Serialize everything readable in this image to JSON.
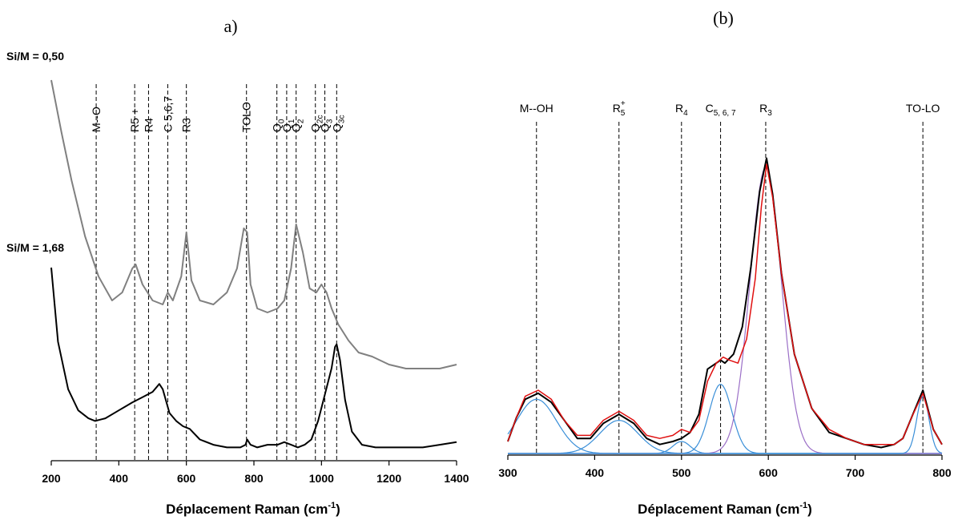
{
  "chart_data": [
    {
      "panel": "a",
      "type": "line",
      "title": "a)",
      "xlabel": "Déplacement Raman (cm",
      "xlabel_sup": "-1",
      "xlabel_close": ")",
      "xlim": [
        200,
        1400
      ],
      "xticks": [
        200,
        400,
        600,
        800,
        1000,
        1200,
        1400
      ],
      "y_axis_visible": false,
      "series_labels": [
        "Si/M = 0,50",
        "Si/M = 1,68"
      ],
      "colors": [
        "#808080",
        "#000000"
      ],
      "series": [
        {
          "name": "Si/M = 0,50",
          "color": "#808080",
          "x": [
            200,
            230,
            260,
            300,
            340,
            380,
            410,
            440,
            450,
            470,
            500,
            530,
            545,
            560,
            585,
            600,
            615,
            640,
            680,
            720,
            750,
            770,
            780,
            790,
            810,
            840,
            870,
            890,
            910,
            925,
            945,
            965,
            985,
            1000,
            1015,
            1030,
            1050,
            1080,
            1110,
            1150,
            1200,
            1250,
            1300,
            1350,
            1400
          ],
          "y": [
            0.95,
            0.82,
            0.7,
            0.56,
            0.46,
            0.4,
            0.42,
            0.48,
            0.49,
            0.44,
            0.4,
            0.39,
            0.42,
            0.4,
            0.46,
            0.57,
            0.45,
            0.4,
            0.39,
            0.42,
            0.48,
            0.58,
            0.57,
            0.44,
            0.38,
            0.37,
            0.38,
            0.4,
            0.48,
            0.59,
            0.52,
            0.43,
            0.42,
            0.44,
            0.42,
            0.38,
            0.34,
            0.3,
            0.27,
            0.26,
            0.24,
            0.23,
            0.23,
            0.23,
            0.24
          ]
        },
        {
          "name": "Si/M = 1,68",
          "color": "#000000",
          "x": [
            200,
            220,
            250,
            280,
            310,
            330,
            360,
            400,
            440,
            470,
            500,
            520,
            530,
            550,
            570,
            590,
            610,
            640,
            680,
            720,
            760,
            775,
            780,
            790,
            810,
            840,
            870,
            890,
            910,
            930,
            950,
            970,
            990,
            1010,
            1030,
            1040,
            1045,
            1055,
            1070,
            1090,
            1120,
            1160,
            1200,
            1250,
            1300,
            1350,
            1400
          ],
          "y": [
            0.7,
            0.42,
            0.24,
            0.16,
            0.13,
            0.12,
            0.13,
            0.16,
            0.19,
            0.21,
            0.23,
            0.26,
            0.24,
            0.15,
            0.12,
            0.1,
            0.09,
            0.05,
            0.03,
            0.02,
            0.02,
            0.03,
            0.05,
            0.03,
            0.02,
            0.03,
            0.03,
            0.04,
            0.03,
            0.02,
            0.03,
            0.05,
            0.12,
            0.22,
            0.32,
            0.4,
            0.41,
            0.35,
            0.2,
            0.08,
            0.03,
            0.02,
            0.02,
            0.02,
            0.02,
            0.03,
            0.04
          ]
        }
      ],
      "markers": [
        {
          "x": 333,
          "label": "M--O",
          "sub": ""
        },
        {
          "x": 447,
          "label": "R5 +",
          "sub": ""
        },
        {
          "x": 488,
          "label": "R4",
          "sub": ""
        },
        {
          "x": 545,
          "label": "C 5,6,7",
          "sub": ""
        },
        {
          "x": 600,
          "label": "R3",
          "sub": ""
        },
        {
          "x": 778,
          "label": "TOLO",
          "sub": ""
        },
        {
          "x": 868,
          "label": "Q",
          "sub": "0"
        },
        {
          "x": 897,
          "label": "Q",
          "sub": "1"
        },
        {
          "x": 925,
          "label": "Q",
          "sub": "2"
        },
        {
          "x": 982,
          "label": "Q",
          "sub": "2c"
        },
        {
          "x": 1010,
          "label": "Q",
          "sub": "3"
        },
        {
          "x": 1045,
          "label": "Q",
          "sub": "3c"
        }
      ]
    },
    {
      "panel": "b",
      "type": "line",
      "title": "(b)",
      "xlabel": "Déplacement Raman (cm",
      "xlabel_sup": "-1",
      "xlabel_close": ")",
      "xlim": [
        300,
        800
      ],
      "xticks": [
        300,
        400,
        500,
        600,
        700,
        800
      ],
      "y_axis_visible": false,
      "colors": {
        "data": "#000000",
        "fit": "#e01010",
        "components": "#3a8fd8",
        "main_component": "#9b6fc7"
      },
      "series": [
        {
          "name": "",
          "color": "#000000",
          "x": [
            300,
            310,
            320,
            335,
            350,
            365,
            380,
            395,
            410,
            428,
            445,
            460,
            475,
            490,
            500,
            510,
            520,
            530,
            540,
            545,
            550,
            560,
            570,
            580,
            590,
            598,
            605,
            615,
            630,
            650,
            670,
            690,
            710,
            730,
            745,
            755,
            765,
            778,
            790,
            800
          ],
          "y": [
            0.04,
            0.12,
            0.18,
            0.2,
            0.17,
            0.11,
            0.05,
            0.05,
            0.1,
            0.13,
            0.1,
            0.05,
            0.03,
            0.04,
            0.05,
            0.07,
            0.13,
            0.28,
            0.3,
            0.31,
            0.3,
            0.33,
            0.42,
            0.62,
            0.87,
            0.98,
            0.86,
            0.6,
            0.33,
            0.15,
            0.07,
            0.05,
            0.03,
            0.02,
            0.03,
            0.05,
            0.12,
            0.21,
            0.08,
            0.03
          ]
        },
        {
          "name": "",
          "color": "#e01010",
          "x": [
            300,
            310,
            320,
            335,
            350,
            365,
            380,
            395,
            410,
            428,
            445,
            460,
            475,
            490,
            500,
            510,
            520,
            530,
            540,
            548,
            555,
            565,
            575,
            585,
            592,
            598,
            605,
            615,
            630,
            650,
            670,
            690,
            710,
            730,
            745,
            755,
            765,
            778,
            790,
            800
          ],
          "y": [
            0.04,
            0.12,
            0.19,
            0.21,
            0.18,
            0.11,
            0.06,
            0.06,
            0.11,
            0.14,
            0.11,
            0.06,
            0.05,
            0.06,
            0.08,
            0.07,
            0.11,
            0.24,
            0.3,
            0.32,
            0.31,
            0.3,
            0.38,
            0.58,
            0.82,
            0.96,
            0.85,
            0.6,
            0.33,
            0.15,
            0.08,
            0.05,
            0.03,
            0.03,
            0.03,
            0.05,
            0.12,
            0.2,
            0.08,
            0.03
          ]
        }
      ],
      "components": [
        {
          "center": 333,
          "height": 0.18,
          "width": 23,
          "color": "#3a8fd8"
        },
        {
          "center": 428,
          "height": 0.11,
          "width": 22,
          "color": "#3a8fd8"
        },
        {
          "center": 500,
          "height": 0.04,
          "width": 10,
          "color": "#3a8fd8"
        },
        {
          "center": 545,
          "height": 0.23,
          "width": 13,
          "color": "#3a8fd8"
        },
        {
          "center": 597,
          "height": 0.95,
          "width": 18,
          "color": "#9b6fc7"
        },
        {
          "center": 778,
          "height": 0.19,
          "width": 7,
          "color": "#3a8fd8"
        }
      ],
      "markers": [
        {
          "x": 333,
          "label": "M--OH",
          "sub": "",
          "sup": ""
        },
        {
          "x": 428,
          "label": "R",
          "sub": "5",
          "sup": "+"
        },
        {
          "x": 500,
          "label": "R",
          "sub": "4",
          "sup": ""
        },
        {
          "x": 545,
          "label": "C",
          "sub": "5, 6, 7",
          "sup": ""
        },
        {
          "x": 597,
          "label": "R",
          "sub": "3",
          "sup": ""
        },
        {
          "x": 778,
          "label": "TO-LO",
          "sub": "",
          "sup": ""
        }
      ]
    }
  ]
}
